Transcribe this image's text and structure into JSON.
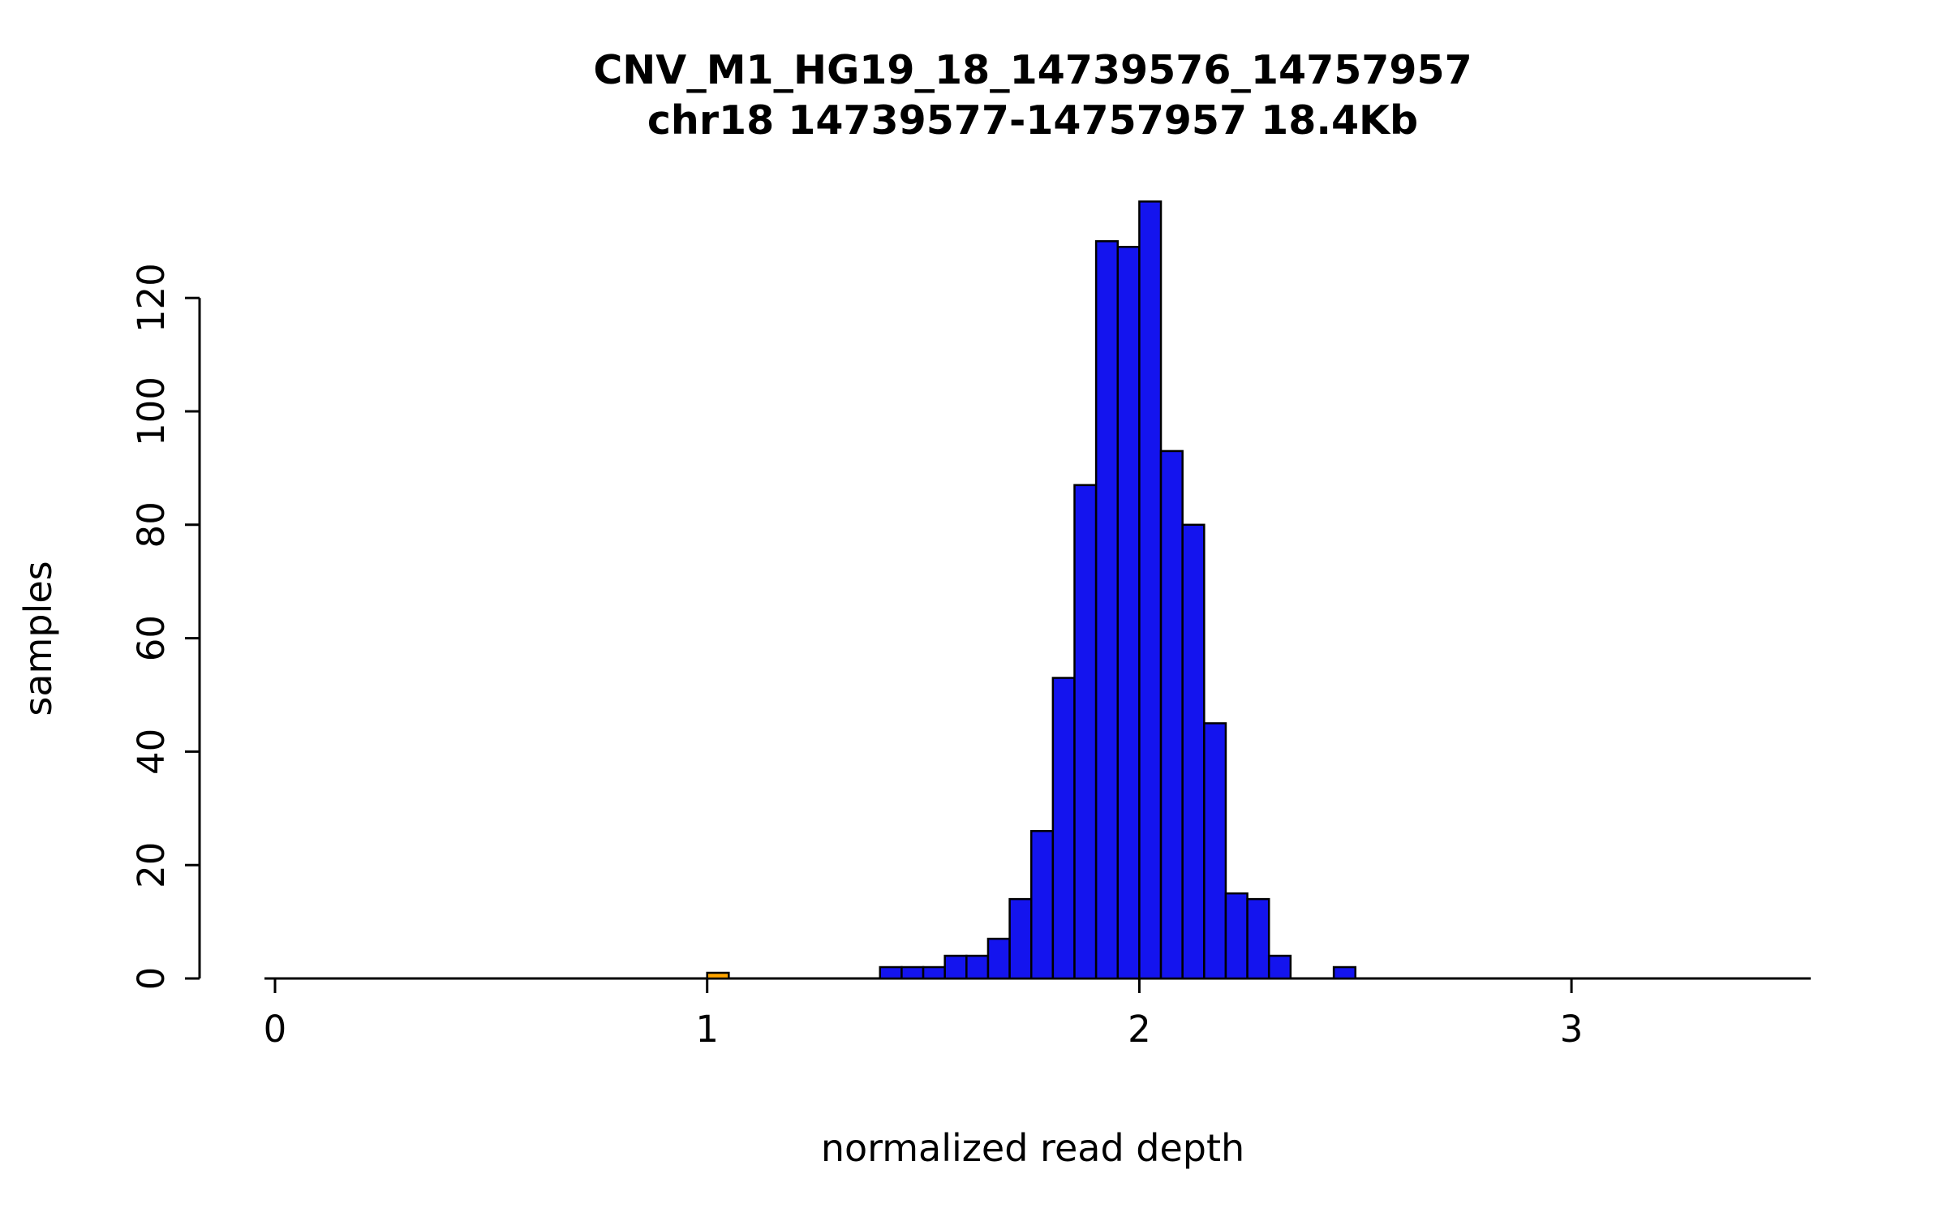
{
  "title": {
    "line1": "CNV_M1_HG19_18_14739576_14757957",
    "line2": "chr18 14739577-14757957 18.4Kb"
  },
  "chart_data": {
    "type": "bar",
    "subtype": "histogram",
    "title": "CNV_M1_HG19_18_14739576_14757957",
    "subtitle": "chr18 14739577-14757957 18.4Kb",
    "xlabel": "normalized read depth",
    "ylabel": "samples",
    "x_ticks": [
      0,
      1,
      2,
      3
    ],
    "y_ticks": [
      0,
      20,
      40,
      60,
      80,
      100,
      120
    ],
    "xlim": [
      -0.25,
      3.55
    ],
    "ylim": [
      0,
      137
    ],
    "bin_width": 0.05,
    "bar_fill": "#1414EE",
    "bar_stroke": "#000000",
    "highlight_fill": "#FFA500",
    "grid": false,
    "legend": "none",
    "bins": [
      {
        "x": 1.0,
        "count": 1,
        "fill_hex": "#FFA500"
      },
      {
        "x": 1.4,
        "count": 2
      },
      {
        "x": 1.45,
        "count": 2
      },
      {
        "x": 1.5,
        "count": 2
      },
      {
        "x": 1.55,
        "count": 4
      },
      {
        "x": 1.6,
        "count": 4
      },
      {
        "x": 1.65,
        "count": 7
      },
      {
        "x": 1.7,
        "count": 14
      },
      {
        "x": 1.75,
        "count": 26
      },
      {
        "x": 1.8,
        "count": 53
      },
      {
        "x": 1.85,
        "count": 87
      },
      {
        "x": 1.9,
        "count": 130
      },
      {
        "x": 1.95,
        "count": 129
      },
      {
        "x": 2.0,
        "count": 137
      },
      {
        "x": 2.05,
        "count": 93
      },
      {
        "x": 2.1,
        "count": 80
      },
      {
        "x": 2.15,
        "count": 45
      },
      {
        "x": 2.2,
        "count": 15
      },
      {
        "x": 2.25,
        "count": 14
      },
      {
        "x": 2.3,
        "count": 4
      },
      {
        "x": 2.45,
        "count": 2
      }
    ]
  }
}
